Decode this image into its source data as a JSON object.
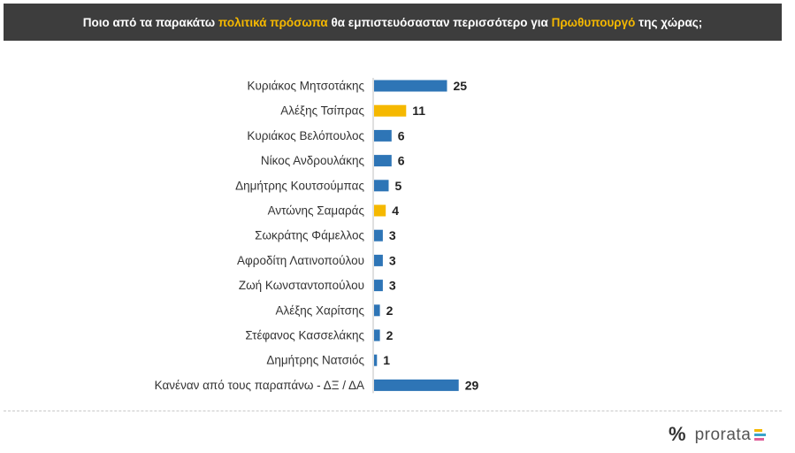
{
  "header": {
    "part1": "Ποιο από τα παρακάτω ",
    "highlight1": "πολιτικά πρόσωπα",
    "part2": " θα εμπιστευόσασταν περισσότερο για ",
    "highlight2": "Πρωθυπουργό",
    "part3": " της χώρας;"
  },
  "colors": {
    "blue": "#2e75b6",
    "yellow": "#f5b800",
    "header_bg": "#3d3d3d"
  },
  "chart_data": {
    "type": "bar",
    "orientation": "horizontal",
    "categories": [
      "Κυριάκος Μητσοτάκης",
      "Αλέξης Τσίπρας",
      "Κυριάκος Βελόπουλος",
      "Νίκος Ανδρουλάκης",
      "Δημήτρης Κουτσούμπας",
      "Αντώνης Σαμαράς",
      "Σωκράτης Φάμελλος",
      "Αφροδίτη Λατινοπούλου",
      "Ζωή Κωνσταντοπούλου",
      "Αλέξης Χαρίτσης",
      "Στέφανος Κασσελάκης",
      "Δημήτρης Νατσιός",
      "Κανέναν από τους παραπάνω - ΔΞ / ΔΑ"
    ],
    "values": [
      25,
      11,
      6,
      6,
      5,
      4,
      3,
      3,
      3,
      2,
      2,
      1,
      29
    ],
    "bar_colors": [
      "blue",
      "yellow",
      "blue",
      "blue",
      "blue",
      "yellow",
      "blue",
      "blue",
      "blue",
      "blue",
      "blue",
      "blue",
      "blue"
    ],
    "title": "",
    "xlabel": "",
    "ylabel": "",
    "grid": false,
    "legend": "none"
  },
  "logo": {
    "symbol": "%",
    "text": "prorata"
  }
}
